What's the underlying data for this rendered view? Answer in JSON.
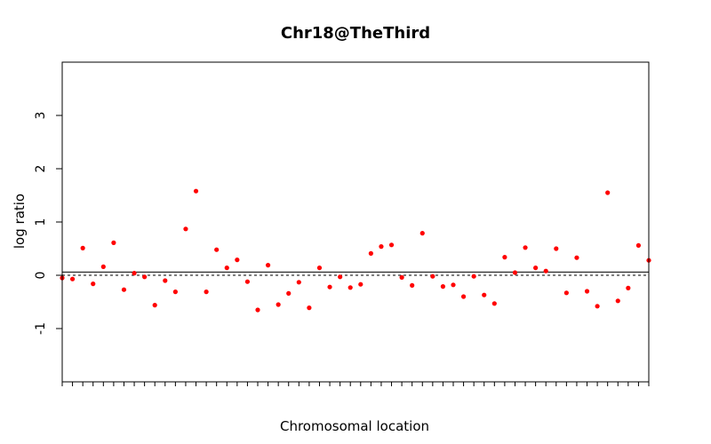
{
  "chart_data": {
    "type": "scatter",
    "title": "Chr18@TheThird",
    "xlabel": "Chromosomal location",
    "ylabel": "log ratio",
    "ylim": [
      -2,
      4
    ],
    "yticks": [
      -1,
      0,
      1,
      2,
      3
    ],
    "ytick_labels": [
      "-1",
      "0",
      "1",
      "2",
      "3"
    ],
    "x_tick_count": 58,
    "point_color": "#ff0000",
    "reference_lines": [
      {
        "kind": "solid",
        "value": 0.06
      },
      {
        "kind": "dashed",
        "value": 0.0
      }
    ],
    "values": [
      -0.05,
      -0.07,
      0.51,
      -0.16,
      0.16,
      0.61,
      -0.27,
      0.04,
      -0.03,
      -0.56,
      -0.1,
      -0.31,
      0.87,
      1.58,
      -0.31,
      0.48,
      0.14,
      0.29,
      -0.12,
      -0.65,
      0.19,
      -0.55,
      -0.34,
      -0.13,
      -0.61,
      0.14,
      -0.22,
      -0.03,
      -0.23,
      -0.17,
      0.41,
      0.54,
      0.57,
      -0.04,
      -0.19,
      0.79,
      -0.02,
      -0.21,
      -0.18,
      -0.4,
      -0.02,
      -0.37,
      -0.53,
      0.34,
      0.05,
      0.52,
      0.14,
      0.08,
      0.5,
      -0.33,
      0.33,
      -0.3,
      -0.58,
      1.55,
      -0.48,
      -0.24,
      0.56,
      0.28
    ]
  }
}
